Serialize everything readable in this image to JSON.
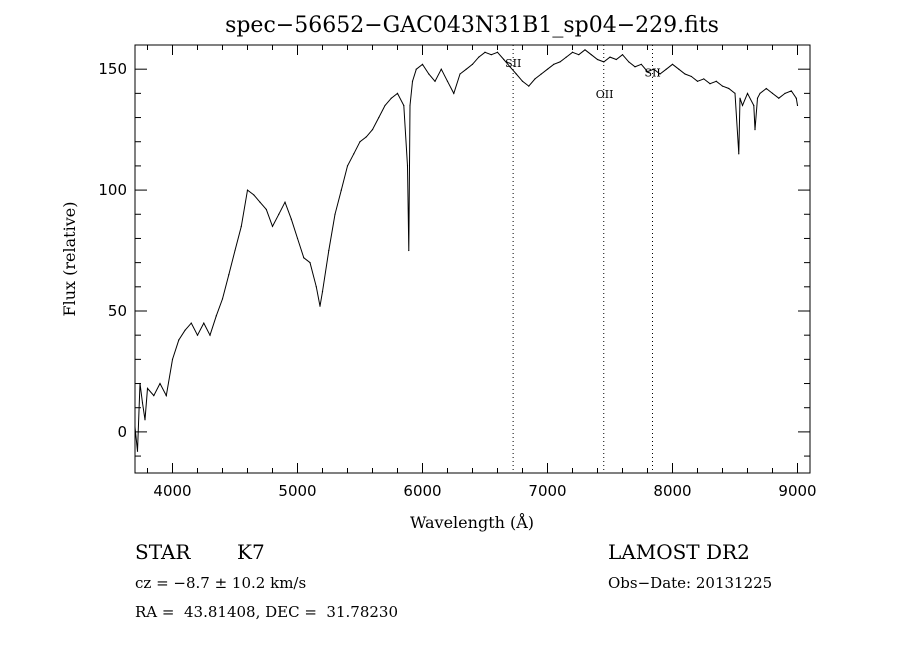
{
  "chart_data": {
    "type": "line",
    "title": "spec−56652−GAC043N31B1_sp04−229.fits",
    "xlabel": "Wavelength (Å)",
    "ylabel": "Flux (relative)",
    "xlim": [
      3700,
      9100
    ],
    "ylim": [
      -17,
      160
    ],
    "x_ticks": [
      4000,
      5000,
      6000,
      7000,
      8000,
      9000
    ],
    "y_ticks": [
      0,
      50,
      100,
      150
    ],
    "grid": false,
    "series": [
      {
        "x": [
          3700,
          3720,
          3740,
          3760,
          3780,
          3800,
          3850,
          3900,
          3950,
          4000,
          4050,
          4100,
          4150,
          4200,
          4250,
          4300,
          4350,
          4400,
          4450,
          4500,
          4550,
          4600,
          4650,
          4700,
          4750,
          4800,
          4850,
          4900,
          4950,
          5000,
          5050,
          5100,
          5150,
          5180,
          5200,
          5250,
          5300,
          5350,
          5400,
          5450,
          5500,
          5550,
          5600,
          5650,
          5700,
          5750,
          5800,
          5850,
          5880,
          5890,
          5900,
          5920,
          5950,
          6000,
          6050,
          6100,
          6150,
          6200,
          6250,
          6300,
          6350,
          6400,
          6450,
          6500,
          6550,
          6600,
          6650,
          6700,
          6750,
          6800,
          6850,
          6900,
          6950,
          7000,
          7050,
          7100,
          7150,
          7200,
          7250,
          7300,
          7350,
          7400,
          7450,
          7500,
          7550,
          7600,
          7650,
          7700,
          7750,
          7800,
          7850,
          7900,
          7950,
          8000,
          8050,
          8100,
          8150,
          8200,
          8250,
          8300,
          8350,
          8400,
          8450,
          8500,
          8530,
          8540,
          8560,
          8600,
          8650,
          8660,
          8680,
          8700,
          8750,
          8800,
          8850,
          8900,
          8950,
          8990,
          9000
        ],
        "y": [
          2,
          -8,
          20,
          12,
          5,
          18,
          15,
          20,
          15,
          30,
          38,
          42,
          45,
          40,
          45,
          40,
          48,
          55,
          65,
          75,
          85,
          100,
          98,
          95,
          92,
          85,
          90,
          95,
          88,
          80,
          72,
          70,
          60,
          52,
          58,
          75,
          90,
          100,
          110,
          115,
          120,
          122,
          125,
          130,
          135,
          138,
          140,
          135,
          110,
          75,
          135,
          145,
          150,
          152,
          148,
          145,
          150,
          145,
          140,
          148,
          150,
          152,
          155,
          157,
          156,
          157,
          154,
          151,
          148,
          145,
          143,
          146,
          148,
          150,
          152,
          153,
          155,
          157,
          156,
          158,
          156,
          154,
          153,
          155,
          154,
          156,
          153,
          151,
          152,
          149,
          150,
          148,
          150,
          152,
          150,
          148,
          147,
          145,
          146,
          144,
          145,
          143,
          142,
          140,
          115,
          138,
          135,
          140,
          135,
          125,
          138,
          140,
          142,
          140,
          138,
          140,
          141,
          138,
          135
        ]
      }
    ],
    "annotations": [
      {
        "label": "SII",
        "x": 6725,
        "label_y": 151
      },
      {
        "label": "OII",
        "x": 7450,
        "label_y": 138
      },
      {
        "label": "SII",
        "x": 7840,
        "label_y": 147
      }
    ]
  },
  "info": {
    "class_label": "STAR",
    "subclass": "K7",
    "survey": "LAMOST DR2",
    "cz": "cz = −8.7 ± 10.2 km/s",
    "obs_date": "Obs−Date: 20131225",
    "radec": "RA =  43.81408, DEC =  31.78230"
  }
}
